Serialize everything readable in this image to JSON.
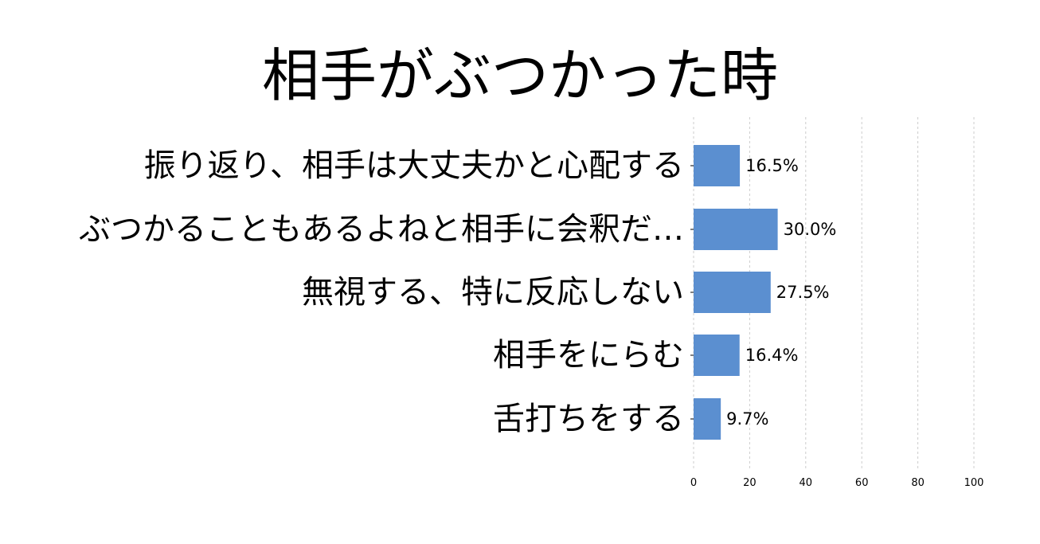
{
  "chart_data": {
    "type": "bar",
    "orientation": "horizontal",
    "title": "相手がぶつかった時",
    "categories": [
      "振り返り、相手は大丈夫かと心配する",
      "ぶつかることもあるよねと相手に会釈だ…",
      "無視する、特に反応しない",
      "相手をにらむ",
      "舌打ちをする"
    ],
    "values": [
      16.5,
      30.0,
      27.5,
      16.4,
      9.7
    ],
    "data_labels": [
      "16.5%",
      "30.0%",
      "27.5%",
      "16.4%",
      "9.7%"
    ],
    "xlim": [
      0,
      100
    ],
    "xticks": [
      0,
      20,
      40,
      60,
      80,
      100
    ],
    "xtick_labels": [
      "0",
      "20",
      "40",
      "60",
      "80",
      "100"
    ],
    "grid": true,
    "bar_color": "#5b8fd0"
  }
}
